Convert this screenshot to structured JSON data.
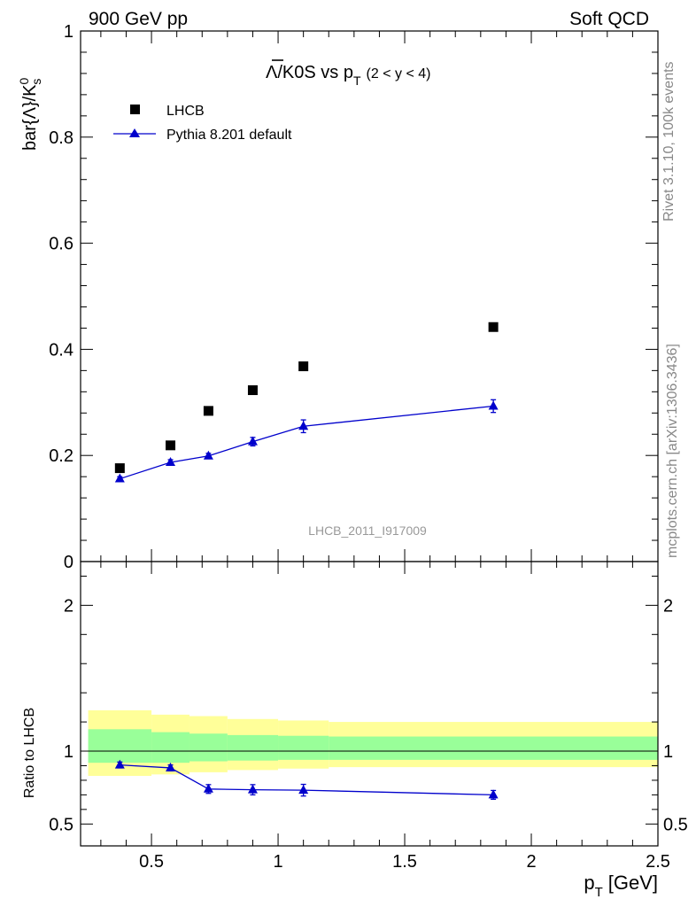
{
  "header": {
    "left": "900 GeV pp",
    "right": "Soft QCD"
  },
  "side": {
    "rivet": "Rivet 3.1.10,  100k events",
    "mcplots": "mcplots.cern.ch [arXiv:1306.3436]"
  },
  "watermark": "LHCB_2011_I917009",
  "main": {
    "title_main": "Λ/K0S vs p",
    "title_sub": "T",
    "title_range": "(2 < y < 4)",
    "ylabel_main": "bar{Λ}/K",
    "ylabel_sup": "0",
    "ylabel_sub": "s",
    "legend": {
      "data_label": "LHCB",
      "mc_label": "Pythia 8.201 default"
    },
    "y_ticks": [
      "1",
      "0.8",
      "0.6",
      "0.4",
      "0.2",
      "0"
    ]
  },
  "ratio": {
    "ylabel": "Ratio to LHCB",
    "y_ticks_left": [
      "2",
      "1",
      "0.5"
    ],
    "y_ticks_right": [
      "2",
      "1",
      "0.5"
    ]
  },
  "xaxis": {
    "label_main": "p",
    "label_sub": "T",
    "label_unit": "[GeV]",
    "ticks": [
      "0.5",
      "1",
      "1.5",
      "2",
      "2.5"
    ]
  },
  "colors": {
    "data": "#000000",
    "mc": "#0000cc",
    "band_inner": "#99ff99",
    "band_outer": "#ffff99",
    "side_text": "#888888"
  },
  "chart_data": [
    {
      "type": "scatter",
      "panel": "main",
      "xlim": [
        0.22,
        2.5
      ],
      "ylim": [
        0,
        1.0
      ],
      "series": [
        {
          "name": "LHCB",
          "x": [
            0.375,
            0.575,
            0.725,
            0.9,
            1.1,
            1.85
          ],
          "values": [
            0.176,
            0.219,
            0.284,
            0.323,
            0.368,
            0.442
          ]
        },
        {
          "name": "Pythia 8.201 default",
          "x": [
            0.375,
            0.575,
            0.725,
            0.9,
            1.1,
            1.85
          ],
          "values": [
            0.156,
            0.187,
            0.199,
            0.226,
            0.255,
            0.293
          ],
          "errors": [
            0.004,
            0.005,
            0.005,
            0.008,
            0.012,
            0.012
          ]
        }
      ]
    },
    {
      "type": "line",
      "panel": "ratio",
      "xlim": [
        0.22,
        2.5
      ],
      "ylim": [
        0.35,
        2.3
      ],
      "series": [
        {
          "name": "Pythia 8.201 default",
          "x": [
            0.375,
            0.575,
            0.725,
            0.9,
            1.1,
            1.85
          ],
          "values": [
            0.905,
            0.885,
            0.74,
            0.735,
            0.732,
            0.7
          ],
          "errors": [
            0.02,
            0.02,
            0.03,
            0.035,
            0.04,
            0.03
          ]
        }
      ],
      "bands": [
        {
          "x0": 0.25,
          "x1": 0.5,
          "inner": [
            0.92,
            1.15
          ],
          "outer": [
            0.83,
            1.28
          ]
        },
        {
          "x0": 0.5,
          "x1": 0.65,
          "inner": [
            0.92,
            1.13
          ],
          "outer": [
            0.84,
            1.25
          ]
        },
        {
          "x0": 0.65,
          "x1": 0.8,
          "inner": [
            0.93,
            1.12
          ],
          "outer": [
            0.855,
            1.24
          ]
        },
        {
          "x0": 0.8,
          "x1": 1.0,
          "inner": [
            0.935,
            1.11
          ],
          "outer": [
            0.87,
            1.22
          ]
        },
        {
          "x0": 1.0,
          "x1": 1.2,
          "inner": [
            0.94,
            1.105
          ],
          "outer": [
            0.88,
            1.21
          ]
        },
        {
          "x0": 1.2,
          "x1": 2.5,
          "inner": [
            0.94,
            1.1
          ],
          "outer": [
            0.89,
            1.2
          ]
        }
      ]
    }
  ]
}
